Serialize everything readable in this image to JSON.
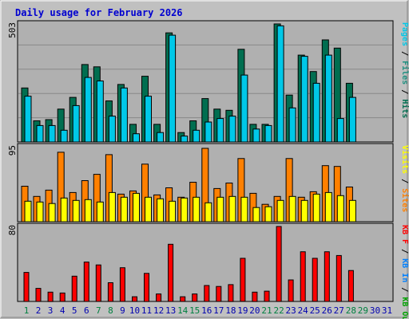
{
  "colors": {
    "background": "#c0c0c0",
    "panel": "#b0b0b0",
    "title": "#0000d0",
    "grid": "#888888",
    "pages": "#00c8e8",
    "files": "#1e9080",
    "hits": "#006e50",
    "visits": "#ffff00",
    "sites": "#ff8000",
    "kb_in": "#0080ff",
    "kb_out": "#00a000",
    "kb_f": "#ff0000",
    "weekday_label": "#0000b0",
    "weekend_label": "#008040"
  },
  "chart_data": {
    "type": "bar",
    "title": "Daily usage for February 2026",
    "categories": [
      "1",
      "2",
      "3",
      "4",
      "5",
      "6",
      "7",
      "8",
      "9",
      "10",
      "11",
      "12",
      "13",
      "14",
      "15",
      "16",
      "17",
      "18",
      "19",
      "20",
      "21",
      "22",
      "23",
      "24",
      "25",
      "26",
      "27",
      "28",
      "29",
      "30",
      "31"
    ],
    "weekend_days": [
      "1",
      "7",
      "8",
      "14",
      "15",
      "21",
      "22",
      "28",
      "29"
    ],
    "panels": [
      {
        "name": "hits",
        "max_label": "503",
        "ylim": [
          0,
          503
        ],
        "legend": [
          {
            "text": "Pages",
            "color": "#00c8e8"
          },
          {
            "text": " / ",
            "color": "#000000"
          },
          {
            "text": "Files",
            "color": "#1e9080"
          },
          {
            "text": " / ",
            "color": "#000000"
          },
          {
            "text": "Hits",
            "color": "#006e50"
          }
        ],
        "series": [
          {
            "name": "Hits",
            "color": "#006e50",
            "values": [
              230,
              90,
              95,
              140,
              190,
              330,
              320,
              175,
              245,
              75,
              280,
              75,
              465,
              40,
              90,
              185,
              140,
              135,
              395,
              75,
              75,
              503,
              200,
              370,
              300,
              435,
              400,
              250,
              0,
              0,
              0
            ]
          },
          {
            "name": "Pages",
            "color": "#00c8e8",
            "values": [
              195,
              70,
              70,
              50,
              155,
              275,
              260,
              110,
              230,
              35,
              195,
              40,
              455,
              25,
              50,
              85,
              100,
              110,
              285,
              55,
              70,
              495,
              145,
              365,
              250,
              370,
              100,
              190,
              0,
              0,
              0
            ]
          }
        ]
      },
      {
        "name": "visits",
        "max_label": "95",
        "ylim": [
          0,
          95
        ],
        "legend": [
          {
            "text": "Visits",
            "color": "#ffff00"
          },
          {
            "text": " / ",
            "color": "#000000"
          },
          {
            "text": "Sites",
            "color": "#ff8000"
          }
        ],
        "series": [
          {
            "name": "Sites",
            "color": "#ff8000",
            "values": [
              45,
              32,
              40,
              88,
              37,
              52,
              60,
              85,
              35,
              39,
              73,
              34,
              43,
              31,
              50,
              93,
              42,
              49,
              80,
              36,
              22,
              32,
              80,
              31,
              38,
              71,
              70,
              44,
              0,
              0,
              0
            ]
          },
          {
            "name": "Visits",
            "color": "#ffff00",
            "values": [
              26,
              25,
              23,
              30,
              27,
              28,
              25,
              37,
              31,
              36,
              31,
              29,
              26,
              30,
              31,
              24,
              31,
              32,
              31,
              18,
              19,
              27,
              32,
              27,
              35,
              37,
              33,
              27,
              0,
              0,
              0
            ]
          }
        ]
      },
      {
        "name": "kbytes",
        "max_label": "80",
        "ylim": [
          0,
          80
        ],
        "legend": [
          {
            "text": "KB F",
            "color": "#ff0000"
          },
          {
            "text": " / ",
            "color": "#000000"
          },
          {
            "text": "KB In",
            "color": "#0080ff"
          },
          {
            "text": " / ",
            "color": "#000000"
          },
          {
            "text": "KB Out",
            "color": "#00a000"
          }
        ],
        "series": [
          {
            "name": "KB F",
            "color": "#ff0000",
            "values": [
              31,
              14,
              10,
              9,
              27,
              42,
              39,
              20,
              36,
              5,
              30,
              8,
              61,
              5,
              8,
              17,
              16,
              18,
              46,
              10,
              11,
              80,
              23,
              53,
              46,
              53,
              49,
              33,
              0,
              0,
              0
            ]
          }
        ]
      }
    ]
  }
}
